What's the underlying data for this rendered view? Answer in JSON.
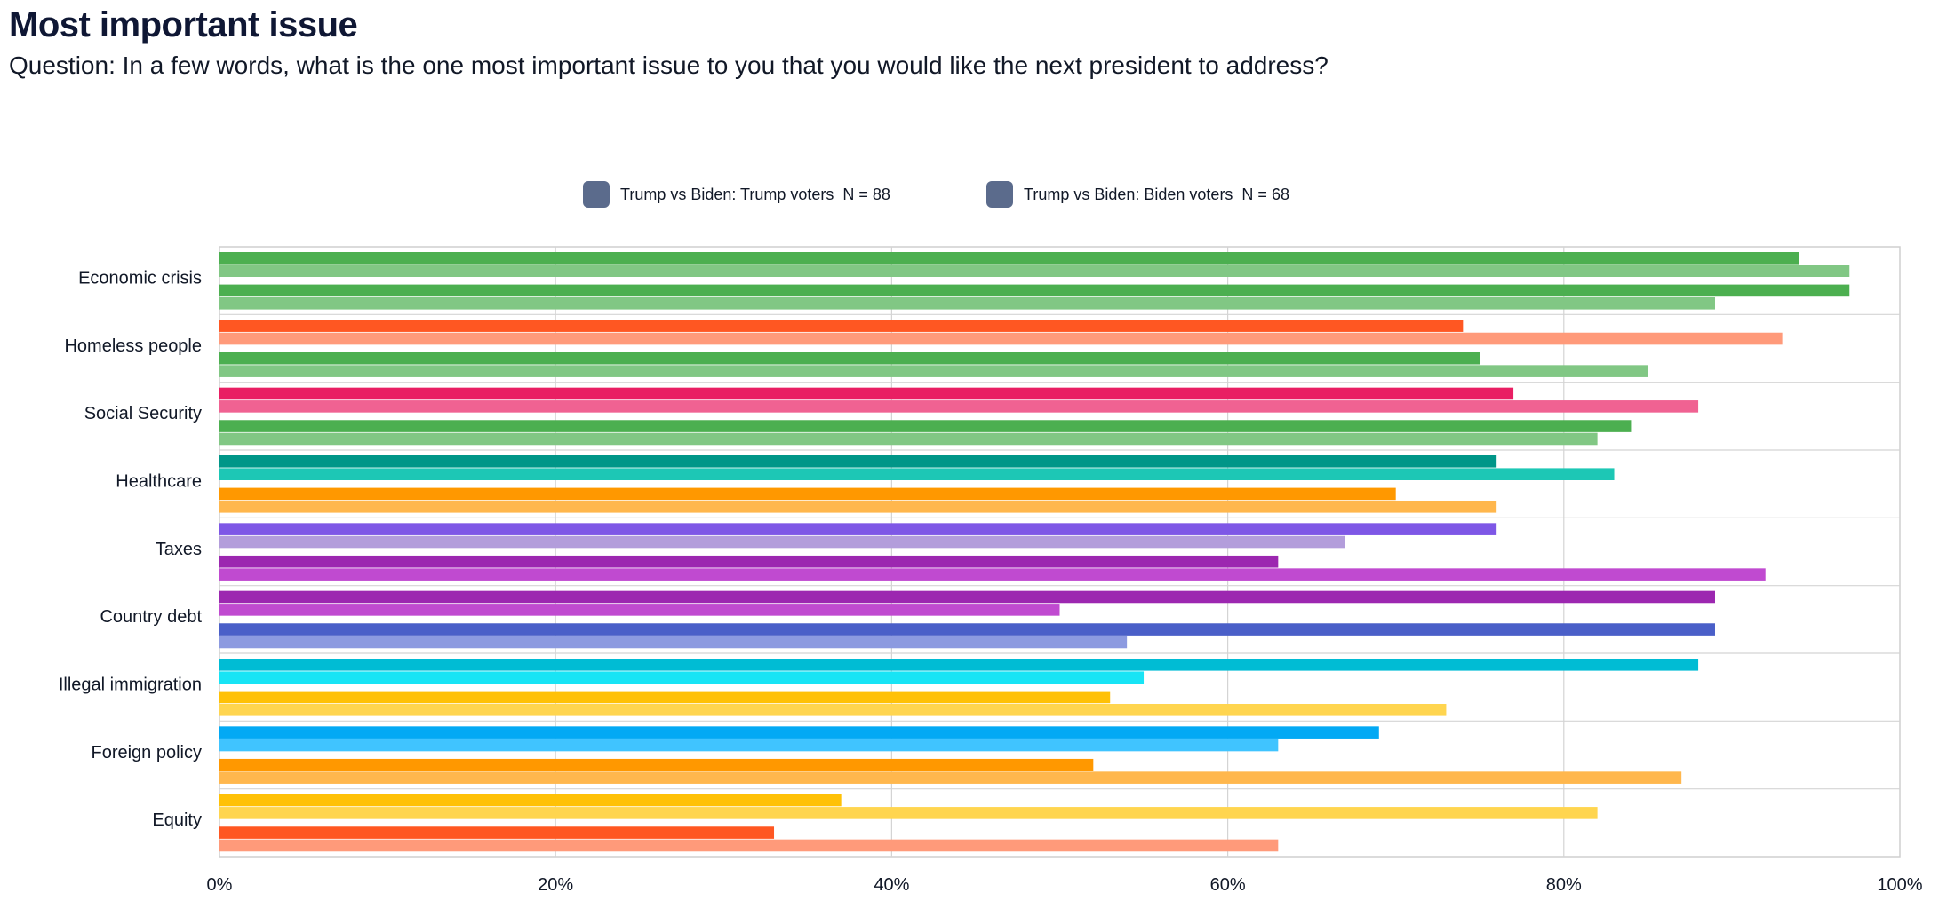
{
  "header": {
    "title": "Most important issue",
    "subtitle": "Question: In a few words, what is the one most important issue to you that you would like the next president to address?"
  },
  "legend": [
    {
      "label": "Trump vs Biden: Trump voters  N = 88",
      "color": "#5b6b8c"
    },
    {
      "label": "Trump vs Biden: Biden voters  N = 68",
      "color": "#5b6b8c"
    }
  ],
  "chart_data": {
    "type": "bar",
    "orientation": "horizontal",
    "title": "Most important issue",
    "xlabel": "",
    "ylabel": "",
    "xlim": [
      0,
      100
    ],
    "x_ticks": [
      "0%",
      "20%",
      "40%",
      "60%",
      "80%",
      "100%"
    ],
    "grid": true,
    "legend_position": "top-center",
    "categories": [
      "Economic crisis",
      "Homeless people",
      "Social Security",
      "Healthcare",
      "Taxes",
      "Country debt",
      "Illegal immigration",
      "Foreign policy",
      "Equity"
    ],
    "bars": [
      {
        "category": "Economic crisis",
        "values": [
          94,
          97,
          97,
          89
        ],
        "colors": [
          "#4caf50",
          "#81c784",
          "#4caf50",
          "#81c784"
        ]
      },
      {
        "category": "Homeless people",
        "values": [
          74,
          93,
          75,
          85
        ],
        "colors": [
          "#ff5722",
          "#ff9a7a",
          "#4caf50",
          "#81c784"
        ]
      },
      {
        "category": "Social Security",
        "values": [
          77,
          88,
          84,
          82
        ],
        "colors": [
          "#e91e63",
          "#f06292",
          "#4caf50",
          "#81c784"
        ]
      },
      {
        "category": "Healthcare",
        "values": [
          76,
          83,
          70,
          76
        ],
        "colors": [
          "#009688",
          "#1dc7b5",
          "#ff9800",
          "#ffb74d"
        ]
      },
      {
        "category": "Taxes",
        "values": [
          76,
          67,
          63,
          92
        ],
        "colors": [
          "#7e57e6",
          "#b39ddb",
          "#9c27b0",
          "#c04ad0"
        ]
      },
      {
        "category": "Country debt",
        "values": [
          89,
          50,
          89,
          54
        ],
        "colors": [
          "#9c27b0",
          "#c04ad0",
          "#4a5fc8",
          "#8c9ae0"
        ]
      },
      {
        "category": "Illegal immigration",
        "values": [
          88,
          55,
          53,
          73
        ],
        "colors": [
          "#00bcd4",
          "#18e4f5",
          "#ffc107",
          "#ffd54f"
        ]
      },
      {
        "category": "Foreign policy",
        "values": [
          69,
          63,
          52,
          87
        ],
        "colors": [
          "#03a9f4",
          "#40c4ff",
          "#ff9800",
          "#ffb74d"
        ]
      },
      {
        "category": "Equity",
        "values": [
          37,
          82,
          33,
          63
        ],
        "colors": [
          "#ffc107",
          "#ffd54f",
          "#ff5722",
          "#ff9a7a"
        ]
      }
    ]
  }
}
